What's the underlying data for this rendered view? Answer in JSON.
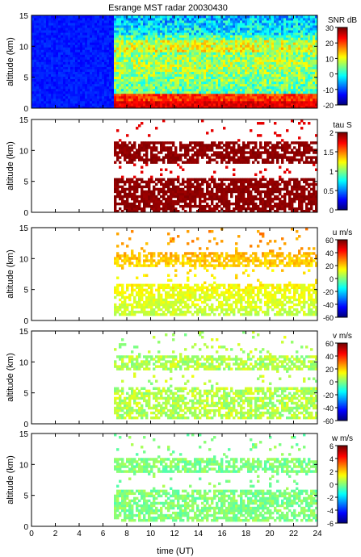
{
  "chart_data": {
    "type": "heatmap",
    "title": "Esrange MST radar 20030430",
    "xlabel": "time (UT)",
    "xlim": [
      0,
      24
    ],
    "x_ticks": [
      "0",
      "2",
      "4",
      "6",
      "8",
      "10",
      "12",
      "14",
      "16",
      "18",
      "20",
      "22",
      "24"
    ],
    "panels": [
      {
        "id": "snr",
        "ylabel": "altitude (km)",
        "ylim": [
          0,
          15
        ],
        "y_ticks": [
          "0",
          "5",
          "10",
          "15"
        ],
        "colorbar_label": "SNR dB",
        "clim": [
          -20,
          30
        ],
        "colorbar_ticks": [
          "-20",
          "-10",
          "0",
          "10",
          "20",
          "30"
        ],
        "colormap": "jet",
        "data_start_hour": 0,
        "data_valid_from_hour": 7
      },
      {
        "id": "tau",
        "ylabel": "altitude (km)",
        "ylim": [
          0,
          15
        ],
        "y_ticks": [
          "0",
          "5",
          "10",
          "15"
        ],
        "colorbar_label": "tau S",
        "clim": [
          0,
          2
        ],
        "colorbar_ticks": [
          "0",
          "0.5",
          "1",
          "1.5",
          "2"
        ],
        "colormap": "jet",
        "data_start_hour": 7
      },
      {
        "id": "u",
        "ylabel": "altitude (km)",
        "ylim": [
          0,
          15
        ],
        "y_ticks": [
          "0",
          "5",
          "10",
          "15"
        ],
        "colorbar_label": "u m/s",
        "clim": [
          -60,
          60
        ],
        "colorbar_ticks": [
          "-60",
          "-40",
          "-20",
          "0",
          "20",
          "40",
          "60"
        ],
        "colormap": "jet",
        "data_start_hour": 7
      },
      {
        "id": "v",
        "ylabel": "altitude (km)",
        "ylim": [
          0,
          15
        ],
        "y_ticks": [
          "0",
          "5",
          "10",
          "15"
        ],
        "colorbar_label": "v m/s",
        "clim": [
          -60,
          60
        ],
        "colorbar_ticks": [
          "-60",
          "-40",
          "-20",
          "0",
          "20",
          "40",
          "60"
        ],
        "colormap": "jet",
        "data_start_hour": 7
      },
      {
        "id": "w",
        "ylabel": "altitude (km)",
        "ylim": [
          0,
          15
        ],
        "y_ticks": [
          "0",
          "5",
          "10",
          "15"
        ],
        "colorbar_label": "w m/s",
        "clim": [
          -6,
          6
        ],
        "colorbar_ticks": [
          "-6",
          "-4",
          "-2",
          "0",
          "2",
          "4",
          "6"
        ],
        "colormap": "jet",
        "data_start_hour": 7
      }
    ]
  }
}
